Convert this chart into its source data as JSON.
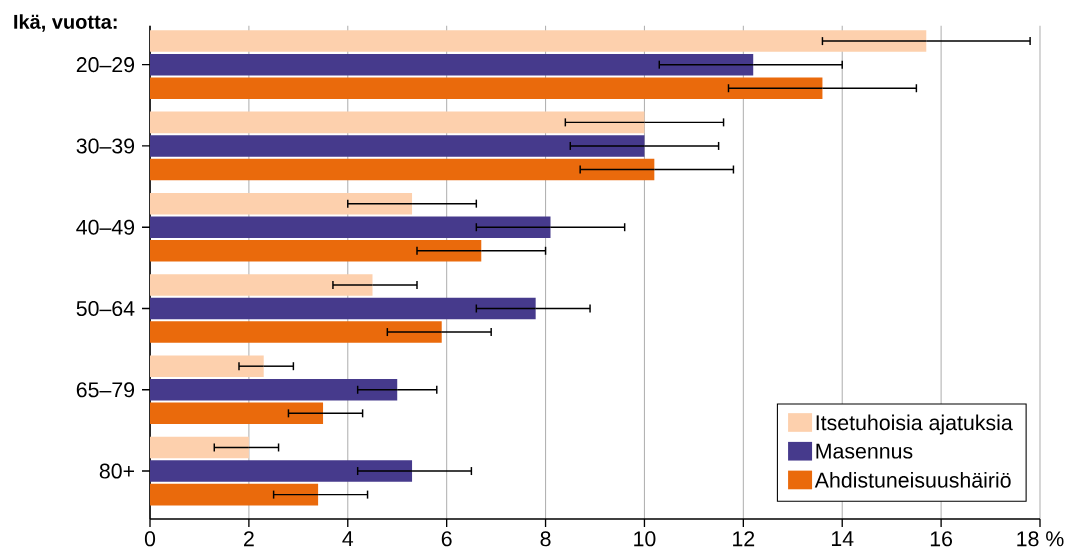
{
  "chart_data": {
    "type": "bar",
    "orientation": "horizontal",
    "ylabel": "Ikä, vuotta:",
    "categories": [
      "20–29",
      "30–39",
      "40–49",
      "50–64",
      "65–79",
      "80+"
    ],
    "series": [
      {
        "name": "Itsetuhoisia ajatuksia",
        "color": "#fdd0ad",
        "values": [
          15.7,
          10.0,
          5.3,
          4.5,
          2.3,
          2.0
        ],
        "errors": [
          [
            13.6,
            17.8
          ],
          [
            8.4,
            11.6
          ],
          [
            4.0,
            6.6
          ],
          [
            3.7,
            5.4
          ],
          [
            1.8,
            2.9
          ],
          [
            1.3,
            2.6
          ]
        ]
      },
      {
        "name": "Masennus",
        "color": "#463a8c",
        "values": [
          12.2,
          10.0,
          8.1,
          7.8,
          5.0,
          5.3
        ],
        "errors": [
          [
            10.3,
            14.0
          ],
          [
            8.5,
            11.5
          ],
          [
            6.6,
            9.6
          ],
          [
            6.6,
            8.9
          ],
          [
            4.2,
            5.8
          ],
          [
            4.2,
            6.5
          ]
        ]
      },
      {
        "name": "Ahdistuneisuushäiriö",
        "color": "#ea6a0c",
        "values": [
          13.6,
          10.2,
          6.7,
          5.9,
          3.5,
          3.4
        ],
        "errors": [
          [
            11.7,
            15.5
          ],
          [
            8.7,
            11.8
          ],
          [
            5.4,
            8.0
          ],
          [
            4.8,
            6.9
          ],
          [
            2.8,
            4.3
          ],
          [
            2.5,
            4.4
          ]
        ]
      }
    ],
    "xlim": [
      0,
      18
    ],
    "xticks": [
      0,
      2,
      4,
      6,
      8,
      10,
      12,
      14,
      16,
      {
        "value": 18,
        "label": "18 %"
      }
    ],
    "grid": "x",
    "legend": "bottom right"
  }
}
